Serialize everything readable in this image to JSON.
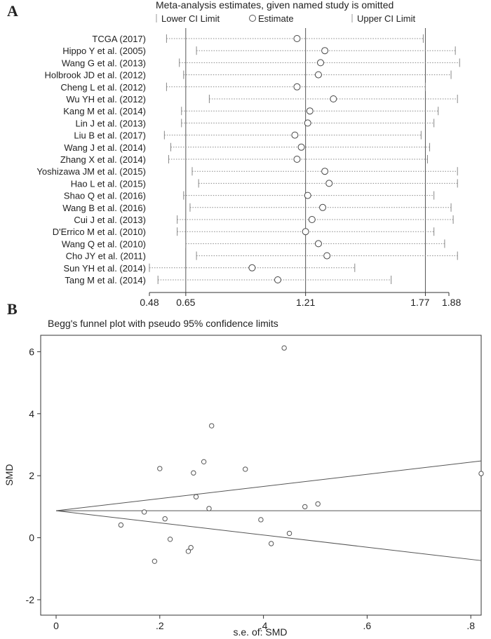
{
  "panels": {
    "a": "A",
    "b": "B"
  },
  "chart_data": [
    {
      "type": "scatter",
      "subtype": "leave-one-out sensitivity plot",
      "title": "Meta-analysis estimates, given named study is omitted",
      "legend": {
        "lower": "Lower CI Limit",
        "estimate": "Estimate",
        "upper": "Upper CI Limit"
      },
      "xlim": [
        0.48,
        1.88
      ],
      "xticks": [
        0.48,
        0.65,
        1.21,
        1.77,
        1.88
      ],
      "xtick_labels": [
        "0.48",
        "0.65",
        "1.21",
        "1.77",
        "1.88"
      ],
      "reference_lines": [
        0.65,
        1.21,
        1.77
      ],
      "studies": [
        "TCGA (2017)",
        "Hippo Y et al. (2005)",
        "Wang G et al. (2013)",
        "Holbrook JD et al. (2012)",
        "Cheng L et al. (2012)",
        "Wu YH et al. (2012)",
        "Kang M et al. (2014)",
        "Lin J et al. (2013)",
        "Liu B et al. (2017)",
        "Wang J et al. (2014)",
        "Zhang X et al. (2014)",
        "Yoshizawa JM et al. (2015)",
        "Hao L et al. (2015)",
        "Shao Q et al. (2016)",
        "Wang B et al. (2016)",
        "Cui J et al. (2013)",
        "D'Errico M et al. (2010)",
        "Wang Q et al. (2010)",
        "Cho JY et al. (2011)",
        "Sun YH et al. (2014)",
        "Tang M et al. (2014)"
      ],
      "estimates": [
        1.17,
        1.3,
        1.28,
        1.27,
        1.17,
        1.34,
        1.23,
        1.22,
        1.16,
        1.19,
        1.17,
        1.3,
        1.32,
        1.22,
        1.29,
        1.24,
        1.21,
        1.27,
        1.31,
        0.96,
        1.08
      ],
      "lower": [
        0.56,
        0.7,
        0.62,
        0.64,
        0.56,
        0.76,
        0.63,
        0.63,
        0.55,
        0.58,
        0.57,
        0.68,
        0.71,
        0.64,
        0.67,
        0.61,
        0.61,
        0.65,
        0.7,
        0.48,
        0.52
      ],
      "upper": [
        1.76,
        1.91,
        1.93,
        1.89,
        1.77,
        1.92,
        1.83,
        1.81,
        1.75,
        1.79,
        1.78,
        1.92,
        1.92,
        1.81,
        1.89,
        1.9,
        1.81,
        1.86,
        1.92,
        1.44,
        1.61
      ]
    },
    {
      "type": "scatter",
      "subtype": "funnel plot",
      "title": "Begg's funnel plot with pseudo 95% confidence limits",
      "xlabel": "s.e. of: SMD",
      "ylabel": "SMD",
      "xlim": [
        0,
        0.82
      ],
      "ylim": [
        -2.2,
        6.6
      ],
      "xticks": [
        0,
        0.2,
        0.4,
        0.6,
        0.8
      ],
      "xtick_labels": [
        "0",
        ".2",
        ".4",
        ".6",
        ".8"
      ],
      "yticks": [
        -2,
        0,
        2,
        4,
        6
      ],
      "ytick_labels": [
        "-2",
        "0",
        "2",
        "4",
        "6"
      ],
      "pooled_estimate": 0.87,
      "x": [
        0.44,
        0.3,
        0.2,
        0.285,
        0.365,
        0.265,
        0.27,
        0.295,
        0.17,
        0.21,
        0.125,
        0.22,
        0.395,
        0.45,
        0.48,
        0.505,
        0.415,
        0.26,
        0.255,
        0.19,
        0.82
      ],
      "y": [
        6.12,
        3.61,
        2.23,
        2.45,
        2.21,
        2.09,
        1.32,
        0.94,
        0.83,
        0.61,
        0.41,
        -0.05,
        0.58,
        0.14,
        1.0,
        1.09,
        -0.19,
        -0.32,
        -0.44,
        -0.76,
        2.07
      ]
    }
  ]
}
